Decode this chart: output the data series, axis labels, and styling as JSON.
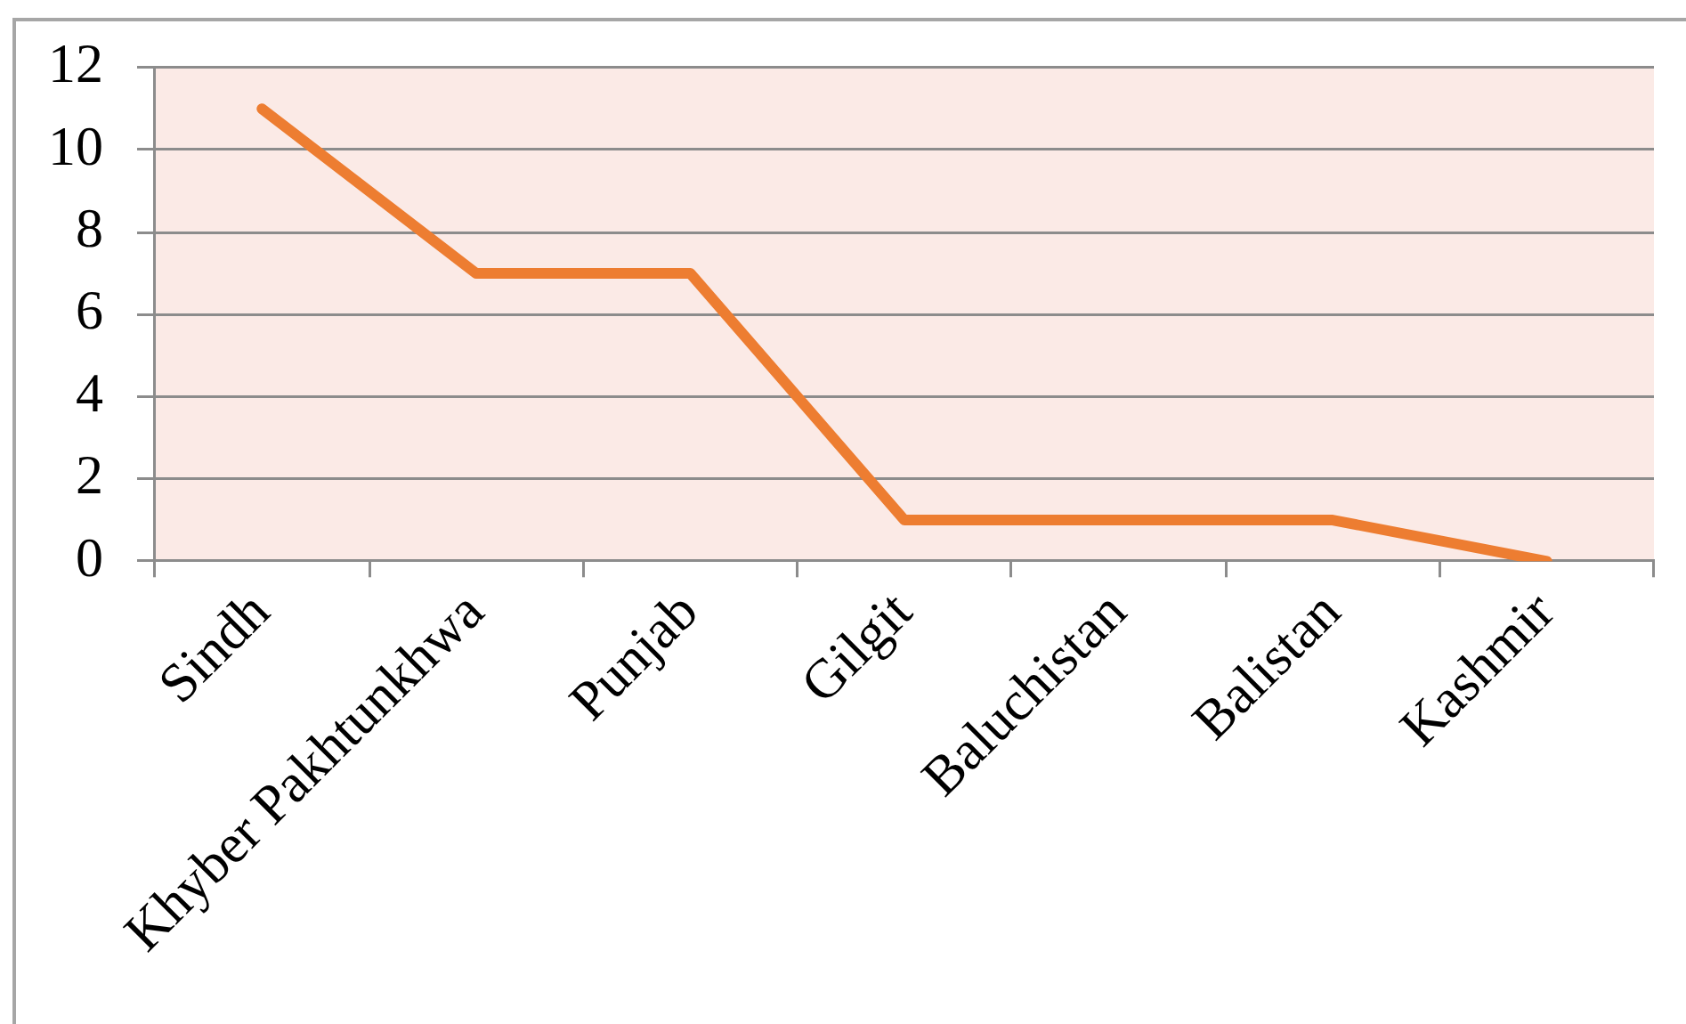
{
  "chart_data": {
    "type": "line",
    "categories": [
      "Sindh",
      "Khyber Pakhtunkhwa",
      "Punjab",
      "Gilgit",
      "Baluchistan",
      "Balistan",
      "Kashmir"
    ],
    "values": [
      11,
      7,
      7,
      1,
      1,
      1,
      0
    ],
    "color": "#ed7d31",
    "ylim": [
      0,
      12
    ],
    "yticks": [
      0,
      2,
      4,
      6,
      8,
      10,
      12
    ],
    "grid": "y",
    "legend": false,
    "marker": "none",
    "line_style": "solid"
  }
}
